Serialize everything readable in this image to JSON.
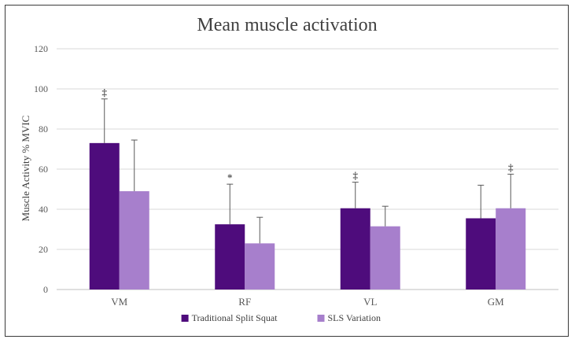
{
  "chart_data": {
    "type": "bar",
    "title": "Mean muscle activation",
    "xlabel": "",
    "ylabel": "Muscle Activity  % MVIC",
    "ylim": [
      0,
      120
    ],
    "yticks": [
      0,
      20,
      40,
      60,
      80,
      100,
      120
    ],
    "grid": true,
    "legend_position": "bottom-center",
    "categories": [
      "VM",
      "RF",
      "VL",
      "GM"
    ],
    "series": [
      {
        "name": "Traditional Split Squat",
        "color": "#4e0c7c",
        "values": [
          73,
          32.5,
          40.5,
          35.5
        ],
        "error": [
          22,
          20,
          13,
          16.5
        ],
        "markers": [
          "‡",
          "*",
          "‡",
          ""
        ]
      },
      {
        "name": "SLS Variation",
        "color": "#a77fcc",
        "values": [
          49,
          23,
          31.5,
          40.5
        ],
        "error": [
          25.5,
          13,
          10,
          17
        ],
        "markers": [
          "",
          "",
          "",
          "‡"
        ]
      }
    ]
  }
}
